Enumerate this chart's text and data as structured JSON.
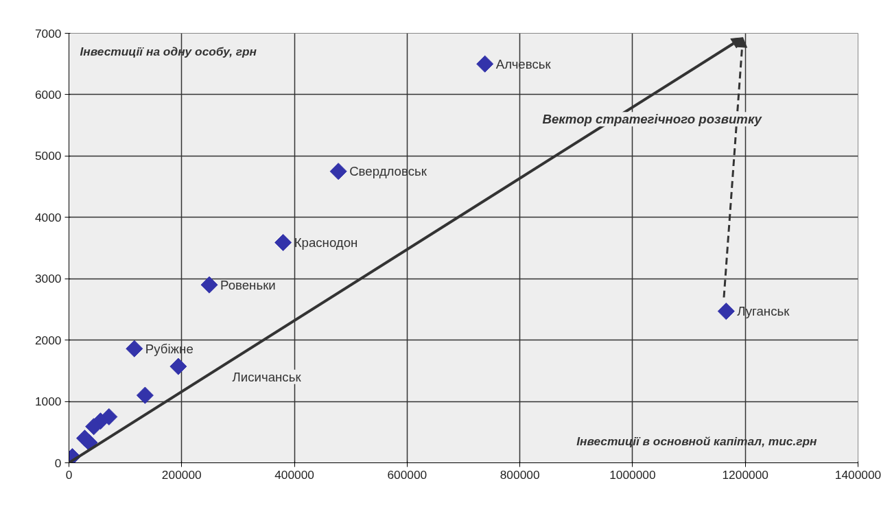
{
  "chart_data": {
    "type": "scatter",
    "xlabel": "Інвестиції в основной капітал, тис.грн",
    "ylabel": "Інвестиції на одну особу, грн",
    "series": [
      {
        "color": "#3333aa",
        "marker": "diamond",
        "x": [
          738000,
          478000,
          380000,
          249000,
          1166000,
          116000,
          194000,
          135000,
          71000,
          56000,
          44000,
          28000,
          36000,
          6000
        ],
        "values": [
          6500,
          4750,
          3590,
          2900,
          2470,
          1860,
          1570,
          1100,
          750,
          680,
          590,
          400,
          330,
          100
        ]
      }
    ],
    "annotations": [
      {
        "text": "Алчевськ",
        "x": 738000,
        "y": 6500
      },
      {
        "text": "Свердловськ",
        "x": 478000,
        "y": 4750
      },
      {
        "text": "Краснодон",
        "x": 380000,
        "y": 3590
      },
      {
        "text": "Ровеньки",
        "x": 249000,
        "y": 2900
      },
      {
        "text": "Луганськ",
        "x": 1166000,
        "y": 2470
      },
      {
        "text": "Рубіжне",
        "x": 116000,
        "y": 1860
      },
      "Лисичанськ",
      "Вектор стратегічного розвитку"
    ],
    "xlim": [
      0,
      1400000
    ],
    "ylim": [
      0,
      7000
    ],
    "xticks": [
      0,
      200000,
      400000,
      600000,
      800000,
      1000000,
      1200000,
      1400000
    ],
    "yticks": [
      0,
      1000,
      2000,
      3000,
      4000,
      5000,
      6000,
      7000
    ],
    "grid": true
  }
}
